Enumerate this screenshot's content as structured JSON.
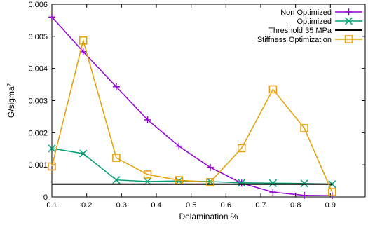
{
  "chart_data": {
    "type": "line",
    "xlabel": "Delamination %",
    "ylabel": "G/sigma",
    "ylabel_superscript": "2",
    "xlim": [
      0.1,
      1.0
    ],
    "ylim": [
      0,
      0.006
    ],
    "x_ticks": [
      0.1,
      0.2,
      0.3,
      0.4,
      0.5,
      0.6,
      0.7,
      0.8,
      0.9
    ],
    "x_tick_labels": [
      "0.1",
      "0.2",
      "0.3",
      "0.4",
      "0.5",
      "0.6",
      "0.7",
      "0.8",
      "0.9"
    ],
    "y_ticks": [
      0,
      0.001,
      0.002,
      0.003,
      0.004,
      0.005,
      0.006
    ],
    "y_tick_labels": [
      "0",
      "0.001",
      "0.002",
      "0.003",
      "0.004",
      "0.005",
      "0.006"
    ],
    "grid": false,
    "legend_position": "top-right",
    "series": [
      {
        "name": "Non Optimized",
        "color": "#9400d3",
        "marker": "plus",
        "x": [
          0.1,
          0.19,
          0.285,
          0.375,
          0.465,
          0.555,
          0.645,
          0.735,
          0.825,
          0.905
        ],
        "y": [
          0.0056,
          0.00452,
          0.00343,
          0.0024,
          0.00158,
          0.00092,
          0.00043,
          0.00015,
          5e-05,
          4e-05
        ]
      },
      {
        "name": "Optimized",
        "color": "#009e73",
        "marker": "cross",
        "x": [
          0.1,
          0.19,
          0.285,
          0.375,
          0.465,
          0.555,
          0.645,
          0.735,
          0.825,
          0.905
        ],
        "y": [
          0.00151,
          0.00135,
          0.00053,
          0.00048,
          0.0005,
          0.00048,
          0.00044,
          0.00043,
          0.00042,
          0.0004
        ]
      },
      {
        "name": "Threshold 35 MPa",
        "color": "#000000",
        "marker": "none",
        "x": [
          0.1,
          0.905
        ],
        "y": [
          0.0004,
          0.0004
        ]
      },
      {
        "name": "Stiffness Optimization",
        "color": "#e69f00",
        "marker": "square",
        "x": [
          0.1,
          0.19,
          0.285,
          0.375,
          0.465,
          0.555,
          0.645,
          0.735,
          0.825,
          0.905
        ],
        "y": [
          0.00095,
          0.00487,
          0.00122,
          0.0007,
          0.00052,
          0.00046,
          0.00152,
          0.00335,
          0.00214,
          0.00015
        ]
      }
    ]
  }
}
